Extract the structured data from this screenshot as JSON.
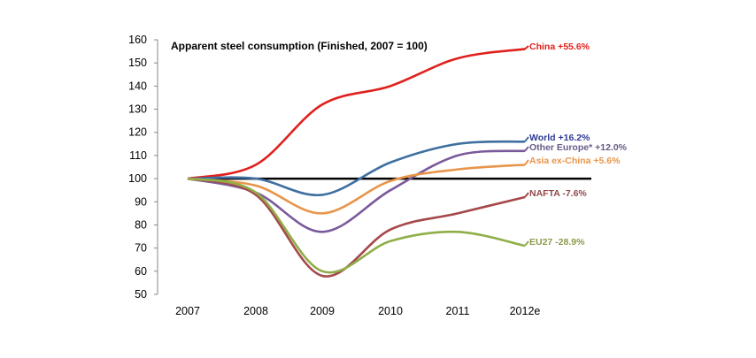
{
  "chart_data": {
    "type": "line",
    "title": "Apparent steel consumption (Finished, 2007 = 100)",
    "categories": [
      "2007",
      "2008",
      "2009",
      "2010",
      "2011",
      "2012e"
    ],
    "ylim": [
      50,
      160
    ],
    "yticks": [
      50,
      60,
      70,
      80,
      90,
      100,
      110,
      120,
      130,
      140,
      150,
      160
    ],
    "grid": false,
    "reference_line": 100,
    "series": [
      {
        "name": "China",
        "label": "China  +55.6%",
        "color": "#e0201c",
        "values": [
          100,
          106,
          132,
          140,
          152,
          156
        ]
      },
      {
        "name": "World",
        "label": "World +16.2%",
        "color": "#3f6fa0",
        "label_color": "#2e3a94",
        "values": [
          100,
          100,
          93,
          107,
          115,
          116
        ]
      },
      {
        "name": "Other Europe*",
        "label": "Other Europe*  +12.0%",
        "color": "#7a5a9a",
        "label_color": "#6a5a8a",
        "values": [
          100,
          94,
          77,
          95,
          110,
          112
        ]
      },
      {
        "name": "Asia ex-China",
        "label": "Asia ex-China +5.6%",
        "color": "#e8954a",
        "values": [
          100,
          97,
          85,
          99,
          104,
          106
        ]
      },
      {
        "name": "NAFTA",
        "label": "NAFTA -7.6%",
        "color": "#a5484a",
        "label_color": "#94494d",
        "values": [
          100,
          93,
          58,
          78,
          85,
          92
        ]
      },
      {
        "name": "EU27",
        "label": "EU27 -28.9%",
        "color": "#8fae48",
        "label_color": "#8a9a4a",
        "values": [
          100,
          94,
          60,
          73,
          77,
          71
        ]
      }
    ]
  }
}
